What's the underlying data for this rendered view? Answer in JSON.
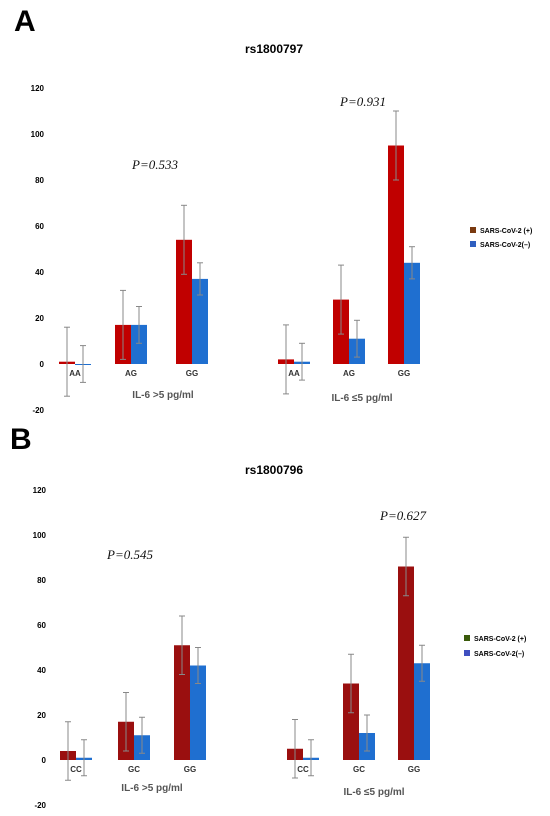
{
  "chart_data": [
    {
      "type": "bar",
      "panel": "A",
      "title": "rs1800797",
      "ylim": [
        -20,
        120
      ],
      "yticks": [
        -20,
        0,
        20,
        40,
        60,
        80,
        100,
        120
      ],
      "groups": [
        {
          "label": "IL-6 >5 pg/ml",
          "p_value": "P=0.533",
          "categories": [
            "AA",
            "AG",
            "GG"
          ]
        },
        {
          "label": "IL-6 ≤5 pg/ml",
          "p_value": "P=0.931",
          "categories": [
            "AA",
            "AG",
            "GG"
          ]
        }
      ],
      "categories": [
        "AA",
        "AG",
        "GG",
        "AA",
        "AG",
        "GG"
      ],
      "series": [
        {
          "name": "SARS-CoV-2 (+)",
          "values": [
            1,
            17,
            54,
            2,
            28,
            95
          ],
          "errors": [
            15,
            15,
            15,
            15,
            15,
            15
          ]
        },
        {
          "name": "SARS-CoV-2(–)",
          "values": [
            0,
            17,
            37,
            1,
            11,
            44
          ],
          "errors": [
            8,
            8,
            7,
            8,
            8,
            7
          ]
        }
      ],
      "legend": "right",
      "grid": false,
      "colors": {
        "pos_bar": "#c00000",
        "neg_bar": "#1f6fd0",
        "pos_legend": "#7a3a10",
        "neg_legend": "#2f5fc0"
      }
    },
    {
      "type": "bar",
      "panel": "B",
      "title": "rs1800796",
      "ylim": [
        -20,
        120
      ],
      "yticks": [
        -20,
        0,
        20,
        40,
        60,
        80,
        100,
        120
      ],
      "groups": [
        {
          "label": "IL-6 >5 pg/ml",
          "p_value": "P=0.545",
          "categories": [
            "CC",
            "GC",
            "GG"
          ]
        },
        {
          "label": "IL-6 ≤5 pg/ml",
          "p_value": "P=0.627",
          "categories": [
            "CC",
            "GC",
            "GG"
          ]
        }
      ],
      "categories": [
        "CC",
        "GC",
        "GG",
        "CC",
        "GC",
        "GG"
      ],
      "series": [
        {
          "name": "SARS-CoV-2 (+)",
          "values": [
            4,
            17,
            51,
            5,
            34,
            86
          ],
          "errors": [
            13,
            13,
            13,
            13,
            13,
            13
          ]
        },
        {
          "name": "SARS-CoV-2(–)",
          "values": [
            1,
            11,
            42,
            1,
            12,
            43
          ],
          "errors": [
            8,
            8,
            8,
            8,
            8,
            8
          ]
        }
      ],
      "legend": "right",
      "grid": false,
      "colors": {
        "pos_bar": "#9a0f0f",
        "neg_bar": "#1f6fd0",
        "pos_legend": "#3a5a0a",
        "neg_legend": "#3f4fc0"
      }
    }
  ]
}
